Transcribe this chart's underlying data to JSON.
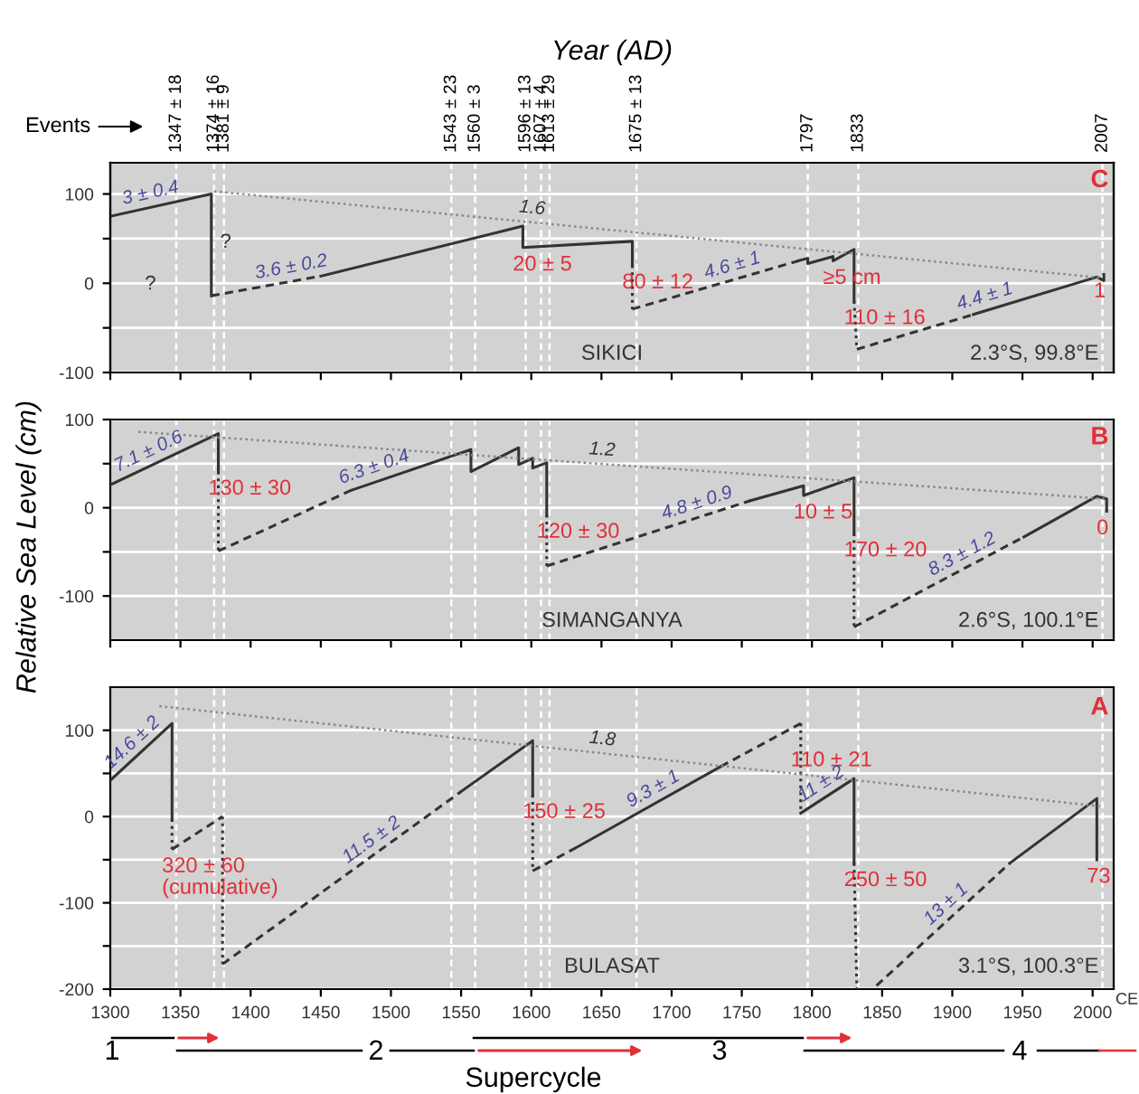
{
  "chart_data": [
    {
      "type": "line",
      "title": "C",
      "x2label": "Year (AD)",
      "xlim": [
        1300,
        2015
      ],
      "x2lim": [
        1300,
        2015
      ],
      "x2ticks": [
        {
          "value": 1347,
          "label": "1347 ± 18"
        },
        {
          "value": 1374,
          "label": "1374 ± 16"
        },
        {
          "value": 1381,
          "label": "1381 ± 9"
        },
        {
          "value": 1543,
          "label": "1543 ± 23"
        },
        {
          "value": 1560,
          "label": "1560 ± 3"
        },
        {
          "value": 1596,
          "label": "1596 ± 13"
        },
        {
          "value": 1607,
          "label": "1607 ± 4"
        },
        {
          "value": 1613,
          "label": "1613 ± 29"
        },
        {
          "value": 1675,
          "label": "1675 ± 13"
        },
        {
          "value": 1797,
          "label": "1797"
        },
        {
          "value": 1833,
          "label": "1833"
        },
        {
          "value": 2007,
          "label": "2007"
        }
      ],
      "xticks": [
        1300,
        1350,
        1400,
        1450,
        1500,
        1550,
        1600,
        1650,
        1700,
        1750,
        1800,
        1850,
        1900,
        1950,
        2000
      ],
      "ylim": [
        -100,
        135
      ],
      "yticks": [
        -100,
        {
          "value": -50,
          "label": null
        },
        0,
        {
          "value": 50,
          "label": null
        },
        100
      ],
      "tick_labels": "y",
      "grid": "y",
      "series": [
        {
          "color": "#333333",
          "line_style": "solid",
          "x": [
            1300,
            1372,
            1372
          ],
          "values": [
            75,
            100,
            -14
          ]
        },
        {
          "color": "#333333",
          "line_style": "dashed",
          "x": [
            1372,
            1450
          ],
          "values": [
            -14,
            8
          ]
        },
        {
          "color": "#333333",
          "line_style": "solid",
          "x": [
            1450,
            1594,
            1594,
            1672,
            1672
          ],
          "values": [
            8,
            64,
            40,
            47,
            20
          ]
        },
        {
          "color": "#333333",
          "line_style": "dotted",
          "x": [
            1672,
            1672
          ],
          "values": [
            20,
            -29
          ]
        },
        {
          "color": "#333333",
          "line_style": "dashed",
          "x": [
            1672,
            1790
          ],
          "values": [
            -29,
            25
          ]
        },
        {
          "color": "#333333",
          "line_style": "solid",
          "x": [
            1790,
            1797,
            1797,
            1815,
            1815,
            1830,
            1830
          ],
          "values": [
            25,
            28,
            22,
            30,
            25,
            38,
            -20
          ]
        },
        {
          "color": "#333333",
          "line_style": "dotted",
          "x": [
            1830,
            1832
          ],
          "values": [
            -20,
            -74
          ]
        },
        {
          "color": "#333333",
          "line_style": "dashed",
          "x": [
            1832,
            1915
          ],
          "values": [
            -74,
            -35
          ]
        },
        {
          "color": "#333333",
          "line_style": "solid",
          "x": [
            1915,
            2003,
            2008,
            2008
          ],
          "values": [
            -35,
            7,
            3,
            10
          ]
        },
        {
          "color": "#888888",
          "line_style": "dotted",
          "x": [
            1374,
            2007
          ],
          "values": [
            103,
            6
          ]
        }
      ],
      "ref_lines": [
        {
          "axis": "x",
          "value": 1347,
          "color": "#ffffff",
          "line_style": "dashed"
        },
        {
          "axis": "x",
          "value": 1374,
          "color": "#ffffff",
          "line_style": "dashed"
        },
        {
          "axis": "x",
          "value": 1381,
          "color": "#ffffff",
          "line_style": "dashed"
        },
        {
          "axis": "x",
          "value": 1543,
          "color": "#ffffff",
          "line_style": "dashed"
        },
        {
          "axis": "x",
          "value": 1560,
          "color": "#ffffff",
          "line_style": "dashed"
        },
        {
          "axis": "x",
          "value": 1596,
          "color": "#ffffff",
          "line_style": "dashed"
        },
        {
          "axis": "x",
          "value": 1607,
          "color": "#ffffff",
          "line_style": "dashed"
        },
        {
          "axis": "x",
          "value": 1613,
          "color": "#ffffff",
          "line_style": "dashed"
        },
        {
          "axis": "x",
          "value": 1675,
          "color": "#ffffff",
          "line_style": "dashed"
        },
        {
          "axis": "x",
          "value": 1797,
          "color": "#ffffff",
          "line_style": "dashed"
        },
        {
          "axis": "x",
          "value": 1833,
          "color": "#ffffff",
          "line_style": "dashed"
        },
        {
          "axis": "x",
          "value": 2007,
          "color": "#ffffff",
          "line_style": "dashed"
        }
      ],
      "annotations": [
        {
          "text": "3 ± 0.4",
          "x": 1330,
          "y": 85.4
        },
        {
          "text": "3.6 ± 0.2",
          "x": 1430,
          "y": 2.4
        },
        {
          "text": "1.6",
          "x": 1600,
          "y": 68.4
        },
        {
          "text": "20 ± 5",
          "x": 1594,
          "y": 40
        },
        {
          "text": "80 ± 12",
          "x": 1672,
          "y": 20
        },
        {
          "text": "4.6 ± 1",
          "x": 1745,
          "y": 4.4
        },
        {
          "text": "≥5 cm",
          "x": 1815,
          "y": 25
        },
        {
          "text": "110 ± 16",
          "x": 1830,
          "y": -20
        },
        {
          "text": "4.4 ± 1",
          "x": 1925,
          "y": -30.2
        },
        {
          "text": "1",
          "x": 2008,
          "y": 10
        },
        "SIKICI",
        "2.3°S, 99.8°E",
        "Events",
        "?",
        "?"
      ]
    },
    {
      "type": "line",
      "title": "B",
      "ylabel": "Relative Sea Level (cm)",
      "xlim": [
        1300,
        2015
      ],
      "xticks": [
        1300,
        1350,
        1400,
        1450,
        1500,
        1550,
        1600,
        1650,
        1700,
        1750,
        1800,
        1850,
        1900,
        1950,
        2000
      ],
      "ylim": [
        -150,
        100
      ],
      "yticks": [
        -100,
        {
          "value": -50,
          "label": null
        },
        0,
        {
          "value": 50,
          "label": null
        },
        100
      ],
      "tick_labels": "y",
      "grid": "y",
      "series": [
        {
          "color": "#333333",
          "line_style": "solid",
          "x": [
            1300,
            1377,
            1377
          ],
          "values": [
            26,
            84,
            41
          ]
        },
        {
          "color": "#333333",
          "line_style": "dotted",
          "x": [
            1377,
            1377
          ],
          "values": [
            41,
            -49
          ]
        },
        {
          "color": "#333333",
          "line_style": "dashed",
          "x": [
            1377,
            1472
          ],
          "values": [
            -49,
            20
          ]
        },
        {
          "color": "#333333",
          "line_style": "solid",
          "x": [
            1472,
            1557,
            1557,
            1591,
            1591,
            1601,
            1601,
            1611,
            1611
          ],
          "values": [
            20,
            66,
            41,
            68,
            49,
            56,
            45,
            51,
            -8
          ]
        },
        {
          "color": "#333333",
          "line_style": "dotted",
          "x": [
            1611,
            1611
          ],
          "values": [
            -8,
            -66
          ]
        },
        {
          "color": "#333333",
          "line_style": "dashed",
          "x": [
            1611,
            1756
          ],
          "values": [
            -66,
            8
          ]
        },
        {
          "color": "#333333",
          "line_style": "solid",
          "x": [
            1756,
            1794,
            1794,
            1830,
            1830
          ],
          "values": [
            8,
            25,
            14,
            34,
            -29
          ]
        },
        {
          "color": "#333333",
          "line_style": "dotted",
          "x": [
            1830,
            1830
          ],
          "values": [
            -29,
            -135
          ]
        },
        {
          "color": "#333333",
          "line_style": "dashed",
          "x": [
            1830,
            1951
          ],
          "values": [
            -135,
            -33
          ]
        },
        {
          "color": "#333333",
          "line_style": "solid",
          "x": [
            1951,
            2003,
            2010,
            2010
          ],
          "values": [
            -33,
            13,
            10,
            -4
          ]
        },
        {
          "color": "#888888",
          "line_style": "dotted",
          "x": [
            1320,
            2010
          ],
          "values": [
            86,
            10
          ]
        }
      ],
      "ref_lines": [
        {
          "axis": "x",
          "value": 1347,
          "color": "#ffffff",
          "line_style": "dashed"
        },
        {
          "axis": "x",
          "value": 1374,
          "color": "#ffffff",
          "line_style": "dashed"
        },
        {
          "axis": "x",
          "value": 1381,
          "color": "#ffffff",
          "line_style": "dashed"
        },
        {
          "axis": "x",
          "value": 1543,
          "color": "#ffffff",
          "line_style": "dashed"
        },
        {
          "axis": "x",
          "value": 1560,
          "color": "#ffffff",
          "line_style": "dashed"
        },
        {
          "axis": "x",
          "value": 1596,
          "color": "#ffffff",
          "line_style": "dashed"
        },
        {
          "axis": "x",
          "value": 1607,
          "color": "#ffffff",
          "line_style": "dashed"
        },
        {
          "axis": "x",
          "value": 1613,
          "color": "#ffffff",
          "line_style": "dashed"
        },
        {
          "axis": "x",
          "value": 1675,
          "color": "#ffffff",
          "line_style": "dashed"
        },
        {
          "axis": "x",
          "value": 1797,
          "color": "#ffffff",
          "line_style": "dashed"
        },
        {
          "axis": "x",
          "value": 1833,
          "color": "#ffffff",
          "line_style": "dashed"
        },
        {
          "axis": "x",
          "value": 2007,
          "color": "#ffffff",
          "line_style": "dashed"
        }
      ],
      "annotations": [
        {
          "text": "7.1 ± 0.6",
          "x": 1330,
          "y": 48.6
        },
        {
          "text": "130 ± 30",
          "x": 1377,
          "y": 41
        },
        {
          "text": "6.3 ± 0.4",
          "x": 1490,
          "y": 30.5
        },
        {
          "text": "1.2",
          "x": 1650,
          "y": 49.7
        },
        {
          "text": "120 ± 30",
          "x": 1611,
          "y": -8
        },
        {
          "text": "4.8 ± 0.9",
          "x": 1720,
          "y": -10.4
        },
        {
          "text": "10 ± 5",
          "x": 1794,
          "y": 14
        },
        {
          "text": "170 ± 20",
          "x": 1830,
          "y": -29
        },
        {
          "text": "8.3 ± 1.2",
          "x": 1910,
          "y": -67.6
        },
        {
          "text": "0",
          "x": 2010,
          "y": -4
        },
        "SIMANGANYA",
        "2.6°S, 100.1°E"
      ]
    },
    {
      "type": "line",
      "title": "A",
      "xlim": [
        1300,
        2015
      ],
      "xticks": [
        1300,
        1350,
        1400,
        1450,
        1500,
        1550,
        1600,
        1650,
        1700,
        1750,
        1800,
        1850,
        1900,
        1950,
        2000
      ],
      "ylim": [
        -200,
        150
      ],
      "yticks": [
        -200,
        {
          "value": -150,
          "label": null
        },
        -100,
        {
          "value": -50,
          "label": null
        },
        0,
        {
          "value": 50,
          "label": null
        },
        100
      ],
      "grid": "y",
      "series": [
        {
          "color": "#333333",
          "line_style": "solid",
          "x": [
            1300,
            1344,
            1344
          ],
          "values": [
            42,
            108,
            -3
          ]
        },
        {
          "color": "#333333",
          "line_style": "dotted",
          "x": [
            1344,
            1344
          ],
          "values": [
            -3,
            -38
          ]
        },
        {
          "color": "#333333",
          "line_style": "dashed",
          "x": [
            1344,
            1380
          ],
          "values": [
            -38,
            0
          ]
        },
        {
          "color": "#333333",
          "line_style": "dotted",
          "x": [
            1380,
            1380
          ],
          "values": [
            0,
            -171
          ]
        },
        {
          "color": "#333333",
          "line_style": "dashed",
          "x": [
            1380,
            1550
          ],
          "values": [
            -171,
            29
          ]
        },
        {
          "color": "#333333",
          "line_style": "solid",
          "x": [
            1550,
            1601,
            1601
          ],
          "values": [
            29,
            88,
            25
          ]
        },
        {
          "color": "#333333",
          "line_style": "dotted",
          "x": [
            1601,
            1601
          ],
          "values": [
            25,
            -63
          ]
        },
        {
          "color": "#333333",
          "line_style": "dashed",
          "x": [
            1601,
            1632
          ],
          "values": [
            -63,
            -36
          ]
        },
        {
          "color": "#333333",
          "line_style": "solid",
          "x": [
            1632,
            1735
          ],
          "values": [
            -36,
            58
          ]
        },
        {
          "color": "#333333",
          "line_style": "dashed",
          "x": [
            1735,
            1792
          ],
          "values": [
            58,
            108
          ]
        },
        {
          "color": "#333333",
          "line_style": "dotted",
          "x": [
            1792,
            1792
          ],
          "values": [
            108,
            4
          ]
        },
        {
          "color": "#333333",
          "line_style": "solid",
          "x": [
            1792,
            1830,
            1830
          ],
          "values": [
            4,
            44,
            -54
          ]
        },
        {
          "color": "#333333",
          "line_style": "dotted",
          "x": [
            1830,
            1832
          ],
          "values": [
            -54,
            -200
          ]
        },
        {
          "color": "#333333",
          "line_style": "dashed",
          "x": [
            1846,
            1941
          ],
          "values": [
            -196,
            -54
          ]
        },
        {
          "color": "#333333",
          "line_style": "solid",
          "x": [
            1941,
            2003,
            2003
          ],
          "values": [
            -54,
            21,
            -50
          ]
        },
        {
          "color": "#888888",
          "line_style": "dotted",
          "x": [
            1335,
            2005
          ],
          "values": [
            128,
            12
          ]
        }
      ],
      "ref_lines": [
        {
          "axis": "x",
          "value": 1347,
          "color": "#ffffff",
          "line_style": "dashed"
        },
        {
          "axis": "x",
          "value": 1374,
          "color": "#ffffff",
          "line_style": "dashed"
        },
        {
          "axis": "x",
          "value": 1381,
          "color": "#ffffff",
          "line_style": "dashed"
        },
        {
          "axis": "x",
          "value": 1543,
          "color": "#ffffff",
          "line_style": "dashed"
        },
        {
          "axis": "x",
          "value": 1560,
          "color": "#ffffff",
          "line_style": "dashed"
        },
        {
          "axis": "x",
          "value": 1596,
          "color": "#ffffff",
          "line_style": "dashed"
        },
        {
          "axis": "x",
          "value": 1607,
          "color": "#ffffff",
          "line_style": "dashed"
        },
        {
          "axis": "x",
          "value": 1613,
          "color": "#ffffff",
          "line_style": "dashed"
        },
        {
          "axis": "x",
          "value": 1675,
          "color": "#ffffff",
          "line_style": "dashed"
        },
        {
          "axis": "x",
          "value": 1797,
          "color": "#ffffff",
          "line_style": "dashed"
        },
        {
          "axis": "x",
          "value": 1833,
          "color": "#ffffff",
          "line_style": "dashed"
        },
        {
          "axis": "x",
          "value": 2007,
          "color": "#ffffff",
          "line_style": "dashed"
        }
      ],
      "annotations": [
        {
          "text": "14.6 ± 2",
          "x": 1320,
          "y": 72
        },
        {
          "text": "320 ± 60\n(cumulative)",
          "x": 1344,
          "y": -38
        },
        {
          "text": "11.5 ± 2",
          "x": 1490,
          "y": -41.6
        },
        {
          "text": "1.8",
          "x": 1650,
          "y": 73.5
        },
        {
          "text": "150 ± 25",
          "x": 1601,
          "y": 25
        },
        {
          "text": "9.3 ± 1",
          "x": 1690,
          "y": 16.9
        },
        {
          "text": "110 ± 21",
          "x": 1792,
          "y": 85
        },
        {
          "text": "11 ± 2",
          "x": 1810,
          "y": 22.9
        },
        {
          "text": "250 ± 50",
          "x": 1830,
          "y": -54
        },
        {
          "text": "13 ± 1",
          "x": 1900,
          "y": -115.3
        },
        {
          "text": "73",
          "x": 2003,
          "y": -50
        },
        "BULASAT",
        "3.1°S, 100.3°E",
        "CE",
        "1",
        "2",
        "3",
        "4",
        "Supercycle"
      ]
    }
  ]
}
